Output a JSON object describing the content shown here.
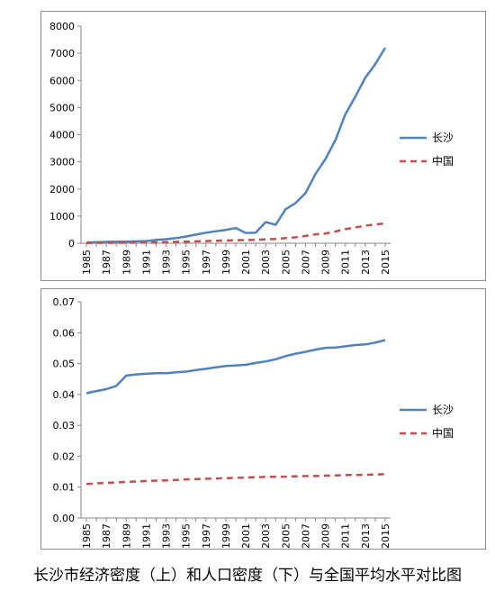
{
  "caption": "长沙市经济密度（上）和人口密度（下）与全国平均水平对比图",
  "colors": {
    "changsha": "#4f81bd",
    "china": "#c0504d"
  },
  "chart_data": [
    {
      "type": "line",
      "title": "",
      "xlabel": "",
      "ylabel": "",
      "ylim": [
        0,
        8000
      ],
      "yticks": [
        0,
        1000,
        2000,
        3000,
        4000,
        5000,
        6000,
        7000,
        8000
      ],
      "x": [
        1985,
        1986,
        1987,
        1988,
        1989,
        1990,
        1991,
        1992,
        1993,
        1994,
        1995,
        1996,
        1997,
        1998,
        1999,
        2000,
        2001,
        2002,
        2003,
        2004,
        2005,
        2006,
        2007,
        2008,
        2009,
        2010,
        2011,
        2012,
        2013,
        2014,
        2015
      ],
      "xticks": [
        "1985",
        "1987",
        "1989",
        "1991",
        "1993",
        "1995",
        "1997",
        "1999",
        "2001",
        "2003",
        "2005",
        "2007",
        "2009",
        "2011",
        "2013",
        "2015"
      ],
      "grid": false,
      "legend_position": "right",
      "series": [
        {
          "name": "长沙",
          "style": "solid",
          "values": [
            30,
            35,
            50,
            55,
            60,
            70,
            80,
            120,
            150,
            190,
            250,
            320,
            390,
            440,
            490,
            560,
            380,
            390,
            780,
            680,
            1250,
            1480,
            1850,
            2550,
            3100,
            3800,
            4750,
            5400,
            6100,
            6600,
            7200
          ]
        },
        {
          "name": "中国",
          "style": "dashed",
          "values": [
            10,
            12,
            15,
            18,
            20,
            22,
            25,
            30,
            40,
            50,
            60,
            70,
            80,
            90,
            100,
            110,
            115,
            125,
            140,
            160,
            190,
            220,
            270,
            330,
            360,
            430,
            520,
            580,
            650,
            690,
            730
          ]
        }
      ]
    },
    {
      "type": "line",
      "title": "",
      "xlabel": "",
      "ylabel": "",
      "ylim": [
        0,
        0.07
      ],
      "yticks": [
        0,
        0.01,
        0.02,
        0.03,
        0.04,
        0.05,
        0.06,
        0.07
      ],
      "x": [
        1985,
        1986,
        1987,
        1988,
        1989,
        1990,
        1991,
        1992,
        1993,
        1994,
        1995,
        1996,
        1997,
        1998,
        1999,
        2000,
        2001,
        2002,
        2003,
        2004,
        2005,
        2006,
        2007,
        2008,
        2009,
        2010,
        2011,
        2012,
        2013,
        2014,
        2015
      ],
      "xticks": [
        "1985",
        "1987",
        "1989",
        "1991",
        "1993",
        "1995",
        "1997",
        "1999",
        "2001",
        "2003",
        "2005",
        "2007",
        "2009",
        "2011",
        "2013",
        "2015"
      ],
      "grid": false,
      "legend_position": "right",
      "series": [
        {
          "name": "长沙",
          "style": "solid",
          "values": [
            0.0404,
            0.0411,
            0.0417,
            0.0428,
            0.0461,
            0.0465,
            0.0467,
            0.0469,
            0.0469,
            0.0472,
            0.0474,
            0.0479,
            0.0483,
            0.0488,
            0.0492,
            0.0494,
            0.0496,
            0.0502,
            0.0507,
            0.0514,
            0.0524,
            0.0532,
            0.0538,
            0.0545,
            0.0551,
            0.0552,
            0.0556,
            0.056,
            0.0562,
            0.0568,
            0.0576
          ]
        },
        {
          "name": "中国",
          "style": "dashed",
          "values": [
            0.011,
            0.0112,
            0.0114,
            0.0115,
            0.0117,
            0.0118,
            0.012,
            0.0121,
            0.0122,
            0.0123,
            0.0125,
            0.0126,
            0.0127,
            0.0128,
            0.0129,
            0.013,
            0.0131,
            0.0132,
            0.0133,
            0.0134,
            0.0134,
            0.0135,
            0.0136,
            0.0136,
            0.0137,
            0.0138,
            0.0139,
            0.0139,
            0.014,
            0.0141,
            0.0142
          ]
        }
      ]
    }
  ]
}
